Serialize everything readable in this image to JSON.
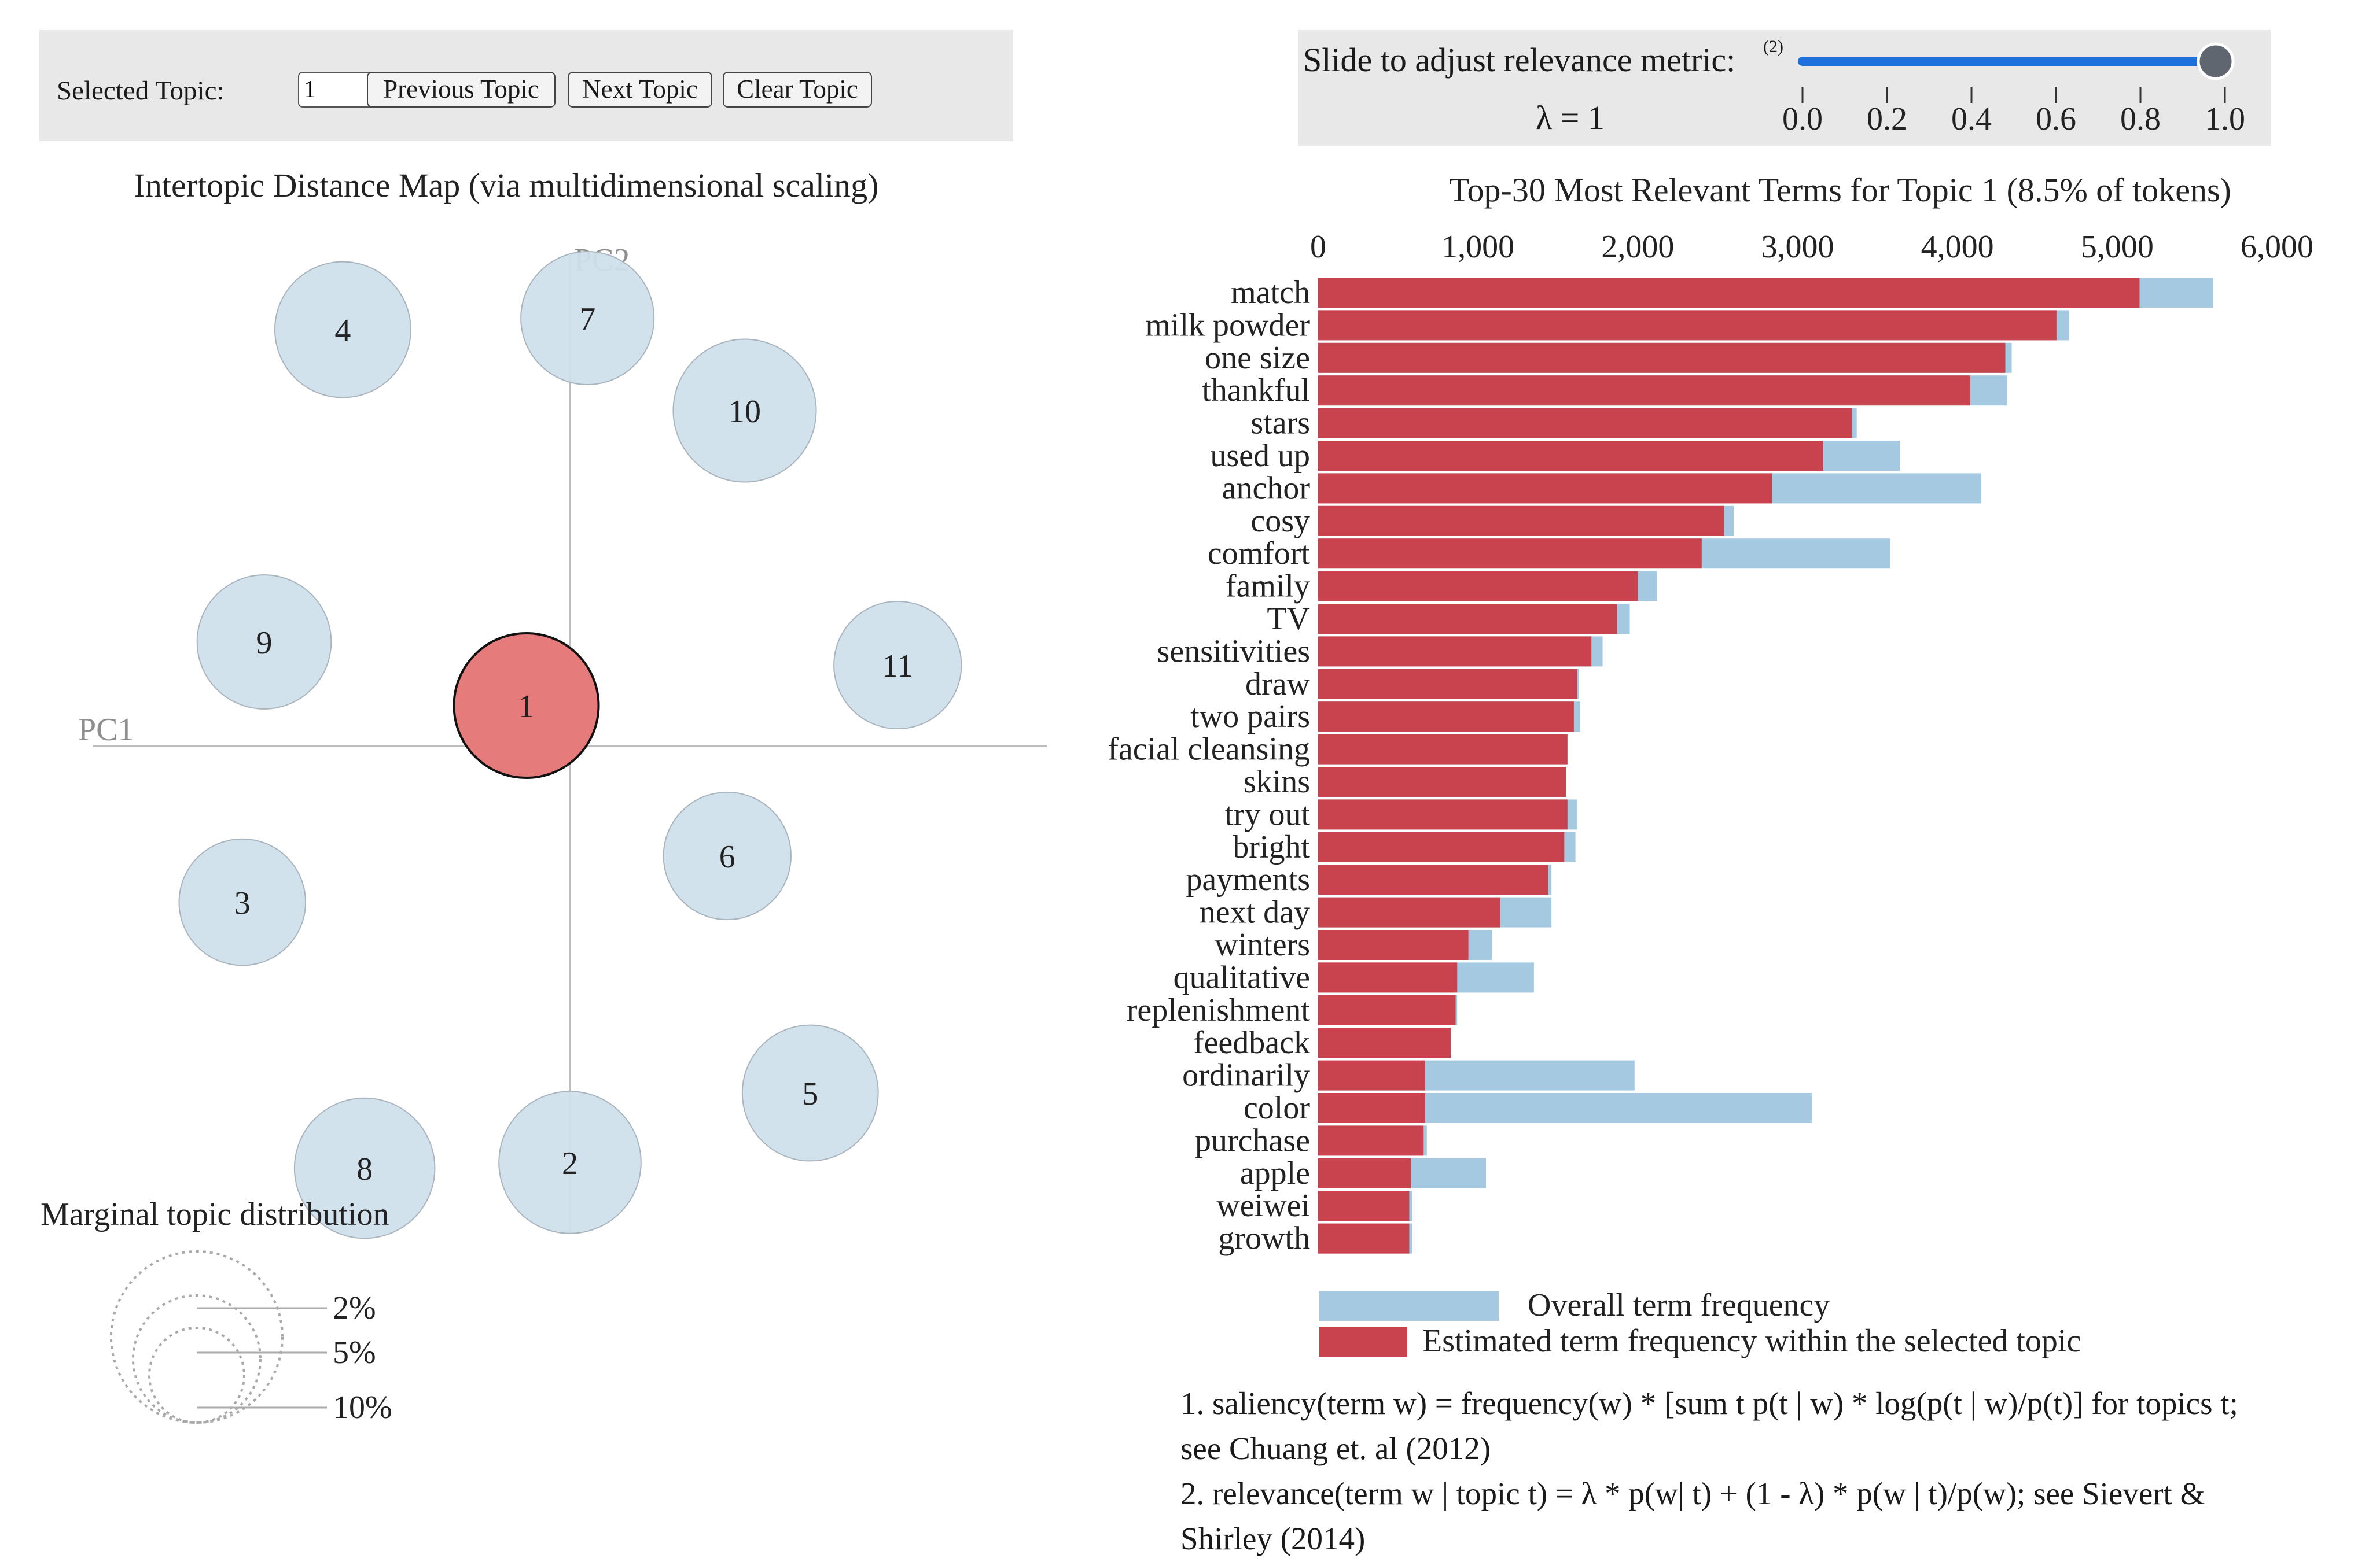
{
  "controls": {
    "selected_topic_label": "Selected Topic:",
    "selected_topic_value": "1",
    "prev_button": "Previous Topic",
    "next_button": "Next Topic",
    "clear_button": "Clear Topic"
  },
  "lambda_panel": {
    "label": "Slide to adjust relevance metric:",
    "footnote_mark": "(2)",
    "lambda_text": "λ = 1",
    "value": 1,
    "ticks": [
      "0.0",
      "0.2",
      "0.4",
      "0.6",
      "0.8",
      "1.0"
    ],
    "accent": "#1f6fdc"
  },
  "colors": {
    "topic_bubble": "#d0e0ec",
    "selected_bubble": "#e57b7b",
    "overall_bar": "#a6c9e2",
    "topic_bar": "#c9434e"
  },
  "chart_data": [
    {
      "type": "scatter",
      "title": "Intertopic Distance Map (via multidimensional scaling)",
      "xlabel": "PC1",
      "ylabel": "PC2",
      "selected_topic": 1,
      "points": [
        {
          "topic": "1",
          "x": -0.1,
          "y": 0.07,
          "size_pct": 8.5
        },
        {
          "topic": "2",
          "x": 0.0,
          "y": -0.72,
          "size_pct": 8.2
        },
        {
          "topic": "3",
          "x": -0.75,
          "y": -0.27,
          "size_pct": 6.5
        },
        {
          "topic": "4",
          "x": -0.52,
          "y": 0.72,
          "size_pct": 7.5
        },
        {
          "topic": "5",
          "x": 0.55,
          "y": -0.6,
          "size_pct": 7.5
        },
        {
          "topic": "6",
          "x": 0.36,
          "y": -0.19,
          "size_pct": 6.6
        },
        {
          "topic": "7",
          "x": 0.04,
          "y": 0.74,
          "size_pct": 7.2
        },
        {
          "topic": "8",
          "x": -0.47,
          "y": -0.73,
          "size_pct": 8.0
        },
        {
          "topic": "9",
          "x": -0.7,
          "y": 0.18,
          "size_pct": 7.3
        },
        {
          "topic": "10",
          "x": 0.4,
          "y": 0.58,
          "size_pct": 8.3
        },
        {
          "topic": "11",
          "x": 0.75,
          "y": 0.14,
          "size_pct": 6.6
        }
      ],
      "size_legend": {
        "title": "Marginal topic distribution",
        "entries": [
          {
            "label": "2%",
            "value": 2
          },
          {
            "label": "5%",
            "value": 5
          },
          {
            "label": "10%",
            "value": 10
          }
        ]
      }
    },
    {
      "type": "bar",
      "orientation": "horizontal",
      "title": "Top-30 Most Relevant Terms for Topic 1 (8.5% of tokens)",
      "xlim": [
        0,
        6000
      ],
      "xticks": [
        "0",
        "1,000",
        "2,000",
        "3,000",
        "4,000",
        "5,000",
        "6,000"
      ],
      "categories": [
        "match",
        "milk powder",
        "one size",
        "thankful",
        "stars",
        "used up",
        "anchor",
        "cosy",
        "comfort",
        "family",
        "TV",
        "sensitivities",
        "draw",
        "two pairs",
        "facial cleansing",
        "skins",
        "try out",
        "bright",
        "payments",
        "next day",
        "winters",
        "qualitative",
        "replenishment",
        "feedback",
        "ordinarily",
        "color",
        "purchase",
        "apple",
        "weiwei",
        "growth"
      ],
      "series": [
        {
          "name": "Overall term frequency",
          "values": [
            5600,
            4700,
            4340,
            4310,
            3370,
            3640,
            4150,
            2600,
            3580,
            2120,
            1950,
            1780,
            1630,
            1640,
            1560,
            1550,
            1620,
            1610,
            1460,
            1460,
            1090,
            1350,
            870,
            830,
            1980,
            3090,
            680,
            1050,
            590,
            590
          ]
        },
        {
          "name": "Estimated term frequency within the selected topic",
          "values": [
            5140,
            4620,
            4300,
            4080,
            3340,
            3160,
            2840,
            2540,
            2400,
            2000,
            1870,
            1710,
            1620,
            1600,
            1560,
            1550,
            1560,
            1540,
            1440,
            1140,
            940,
            870,
            860,
            830,
            670,
            670,
            660,
            580,
            570,
            570
          ]
        }
      ],
      "legend": [
        "Overall term frequency",
        "Estimated term frequency within the selected topic"
      ]
    }
  ],
  "notes": {
    "line1": "1. saliency(term w) = frequency(w) * [sum t p(t | w) * log(p(t | w)/p(t)] for topics t;",
    "line2": "see Chuang et. al (2012)",
    "line3": "2. relevance(term w | topic t) = λ * p(w| t) + (1 - λ) * p(w | t)/p(w); see Sievert &",
    "line4": "Shirley (2014)"
  }
}
